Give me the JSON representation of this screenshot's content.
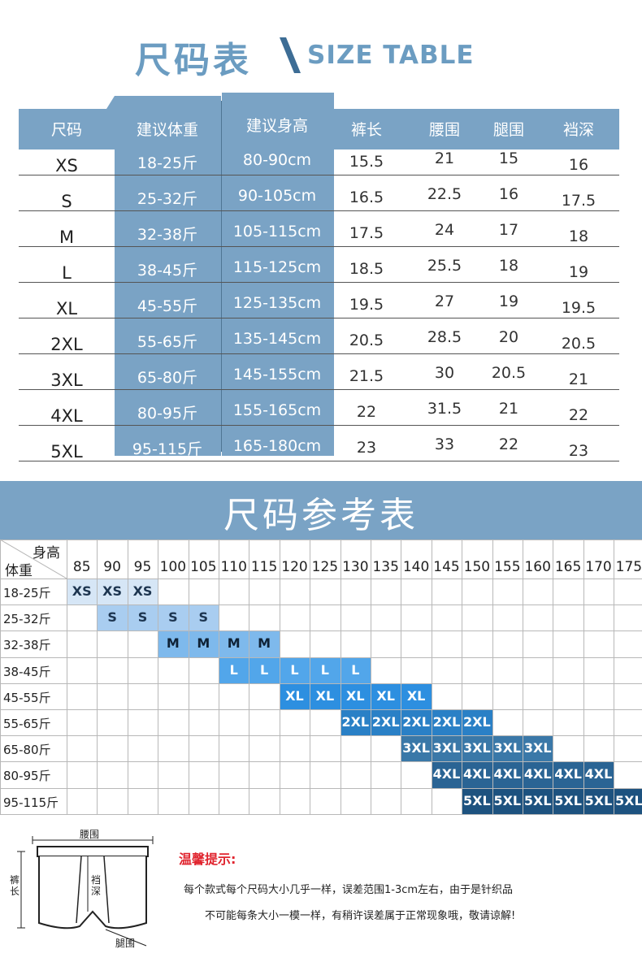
{
  "title": {
    "cn": "尺码表",
    "en": "SIZE TABLE"
  },
  "size_table": {
    "headers": [
      "尺码",
      "建议体重",
      "建议身高",
      "裤长",
      "腰围",
      "腿围",
      "裆深"
    ],
    "rows": [
      [
        "XS",
        "18-25斤",
        "80-90cm",
        "15.5",
        "21",
        "15",
        "16"
      ],
      [
        "S",
        "25-32斤",
        "90-105cm",
        "16.5",
        "22.5",
        "16",
        "17.5"
      ],
      [
        "M",
        "32-38斤",
        "105-115cm",
        "17.5",
        "24",
        "17",
        "18"
      ],
      [
        "L",
        "38-45斤",
        "115-125cm",
        "18.5",
        "25.5",
        "18",
        "19"
      ],
      [
        "XL",
        "45-55斤",
        "125-135cm",
        "19.5",
        "27",
        "19",
        "19.5"
      ],
      [
        "2XL",
        "55-65斤",
        "135-145cm",
        "20.5",
        "28.5",
        "20",
        "20.5"
      ],
      [
        "3XL",
        "65-80斤",
        "145-155cm",
        "21.5",
        "30",
        "20.5",
        "21"
      ],
      [
        "4XL",
        "80-95斤",
        "155-165cm",
        "22",
        "31.5",
        "21",
        "22"
      ],
      [
        "5XL",
        "95-115斤",
        "165-180cm",
        "23",
        "33",
        "22",
        "23"
      ]
    ],
    "colors": {
      "header_bg": "#7aa3c5",
      "text_on_blue": "#ffffff"
    }
  },
  "reference": {
    "title": "尺码参考表",
    "corner_height": "身高",
    "corner_weight": "体重",
    "heights": [
      "85",
      "90",
      "95",
      "100",
      "105",
      "110",
      "115",
      "120",
      "125",
      "130",
      "135",
      "140",
      "145",
      "150",
      "155",
      "160",
      "165",
      "170",
      "175"
    ],
    "weights": [
      "18-25斤",
      "25-32斤",
      "32-38斤",
      "38-45斤",
      "45-55斤",
      "55-65斤",
      "65-80斤",
      "80-95斤",
      "95-115斤"
    ],
    "bands": [
      {
        "size": "XS",
        "row": 0,
        "start": 0,
        "count": 3,
        "bg": "#d6e6f6",
        "fg": "#1d3550"
      },
      {
        "size": "S",
        "row": 1,
        "start": 1,
        "count": 4,
        "bg": "#a9cdf0",
        "fg": "#1d3550"
      },
      {
        "size": "M",
        "row": 2,
        "start": 3,
        "count": 4,
        "bg": "#7eb9ec",
        "fg": "#0f2236"
      },
      {
        "size": "L",
        "row": 3,
        "start": 5,
        "count": 5,
        "bg": "#52a6ea",
        "fg": "#ffffff"
      },
      {
        "size": "XL",
        "row": 4,
        "start": 7,
        "count": 5,
        "bg": "#2d8fe0",
        "fg": "#ffffff"
      },
      {
        "size": "2XL",
        "row": 5,
        "start": 9,
        "count": 5,
        "bg": "#2a80c6",
        "fg": "#ffffff"
      },
      {
        "size": "3XL",
        "row": 6,
        "start": 11,
        "count": 5,
        "bg": "#3a78a8",
        "fg": "#ffffff"
      },
      {
        "size": "4XL",
        "row": 7,
        "start": 12,
        "count": 6,
        "bg": "#2a6494",
        "fg": "#ffffff"
      },
      {
        "size": "5XL",
        "row": 8,
        "start": 13,
        "count": 6,
        "bg": "#1d527f",
        "fg": "#ffffff"
      }
    ]
  },
  "diagram": {
    "waist": "腰围",
    "length": "裤长",
    "rise": "裆深",
    "leg": "腿围",
    "icon": "briefs-icon"
  },
  "tips": {
    "title": "温馨提示:",
    "line1": "每个款式每个尺码大小几乎一样，误差范围1-3cm左右，由于是针织品",
    "line2": "不可能每条大小一模一样，有稍许误差属于正常现象哦，敬请谅解!"
  }
}
